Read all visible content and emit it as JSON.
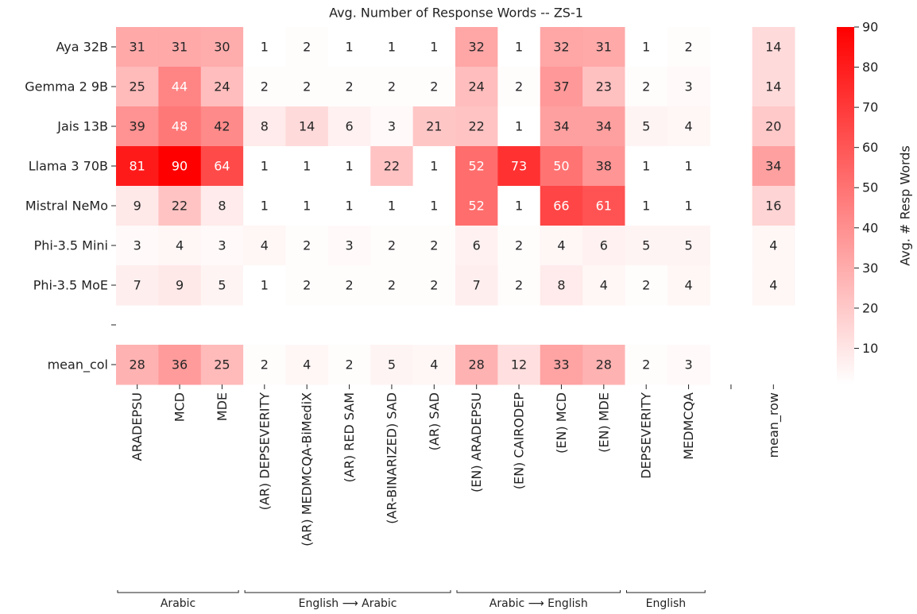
{
  "chart_data": {
    "type": "heatmap",
    "title": "Avg. Number of Response Words -- ZS-1",
    "rows": [
      "Aya 32B",
      "Gemma 2 9B",
      "Jais 13B",
      "Llama 3 70B",
      "Mistral NeMo",
      "Phi-3.5 Mini",
      "Phi-3.5 MoE",
      null,
      "mean_col"
    ],
    "columns": [
      "ARADEPSU",
      "MCD",
      "MDE",
      "(AR) DEPSEVERITY",
      "(AR) MEDMCQA-BiMediX",
      "(AR) RED SAM",
      "(AR-BINARIZED) SAD",
      "(AR) SAD",
      "(EN) ARADEPSU",
      "(EN) CAIRODEP",
      "(EN) MCD",
      "(EN) MDE",
      "DEPSEVERITY",
      "MEDMCQA",
      null,
      "mean_row"
    ],
    "values": [
      [
        31,
        31,
        30,
        1,
        2,
        1,
        1,
        1,
        32,
        1,
        32,
        31,
        1,
        2,
        null,
        14
      ],
      [
        25,
        44,
        24,
        2,
        2,
        2,
        2,
        2,
        24,
        2,
        37,
        23,
        2,
        3,
        null,
        14
      ],
      [
        39,
        48,
        42,
        8,
        14,
        6,
        3,
        21,
        22,
        1,
        34,
        34,
        5,
        4,
        null,
        20
      ],
      [
        81,
        90,
        64,
        1,
        1,
        1,
        22,
        1,
        52,
        73,
        50,
        38,
        1,
        1,
        null,
        34
      ],
      [
        9,
        22,
        8,
        1,
        1,
        1,
        1,
        1,
        52,
        1,
        66,
        61,
        1,
        1,
        null,
        16
      ],
      [
        3,
        4,
        3,
        4,
        2,
        3,
        2,
        2,
        6,
        2,
        4,
        6,
        5,
        5,
        null,
        4
      ],
      [
        7,
        9,
        5,
        1,
        2,
        2,
        2,
        2,
        7,
        2,
        8,
        4,
        2,
        4,
        null,
        4
      ],
      [
        null,
        null,
        null,
        null,
        null,
        null,
        null,
        null,
        null,
        null,
        null,
        null,
        null,
        null,
        null,
        null
      ],
      [
        28,
        36,
        25,
        2,
        4,
        2,
        5,
        4,
        28,
        12,
        33,
        28,
        2,
        3,
        null,
        null
      ]
    ],
    "colorbar_label": "Avg. # Resp Words",
    "clim": [
      1,
      90
    ],
    "cticks": [
      10,
      20,
      30,
      40,
      50,
      60,
      70,
      80,
      90
    ],
    "color": "#ff0000",
    "groups": [
      "Arabic",
      "English ⟶ Arabic",
      "Arabic ⟶ English",
      "English"
    ]
  }
}
